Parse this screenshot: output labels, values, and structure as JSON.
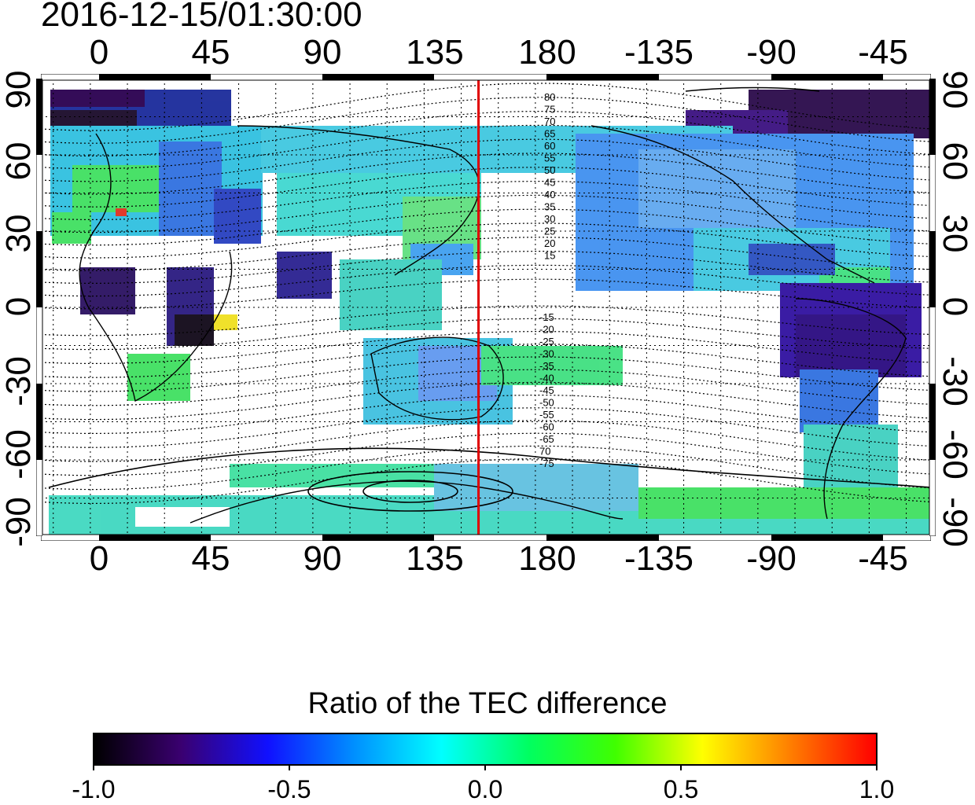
{
  "title": "2016-12-15/01:30:00",
  "lon_ticks": [
    "0",
    "45",
    "90",
    "135",
    "180",
    "-135",
    "-90",
    "-45"
  ],
  "lat_ticks_left": [
    "90",
    "60",
    "30",
    "0",
    "-30",
    "-60",
    "-90"
  ],
  "lat_ticks_right": [
    "90",
    "60",
    "30",
    "0",
    "-30",
    "-60",
    "-90"
  ],
  "contour_labels_north": [
    "80",
    "75",
    "70",
    "65",
    "60",
    "55",
    "50",
    "45",
    "40",
    "35",
    "30",
    "25",
    "20",
    "15"
  ],
  "contour_labels_south": [
    "-15",
    "-20",
    "-25",
    "-30",
    "-35",
    "-40",
    "-45",
    "-50",
    "-55",
    "-60",
    "-65",
    "70",
    "-75"
  ],
  "colorbar": {
    "title": "Ratio of the TEC difference",
    "ticks": [
      "-1.0",
      "-0.5",
      "0.0",
      "0.5",
      "1.0"
    ],
    "range": [
      -1.0,
      1.0
    ],
    "colors": [
      "#000000",
      "#3a0070",
      "#1010ff",
      "#0090ff",
      "#00ffff",
      "#00ff60",
      "#40ff00",
      "#ffff00",
      "#ff8000",
      "#ff0000"
    ]
  },
  "map": {
    "lon_range": [
      -20,
      340
    ],
    "lat_range": [
      -90,
      90
    ],
    "grid_lon_step": 15,
    "grid_lat_step": 15,
    "terminator_lon": 157,
    "terminator_color": "#e00000"
  }
}
